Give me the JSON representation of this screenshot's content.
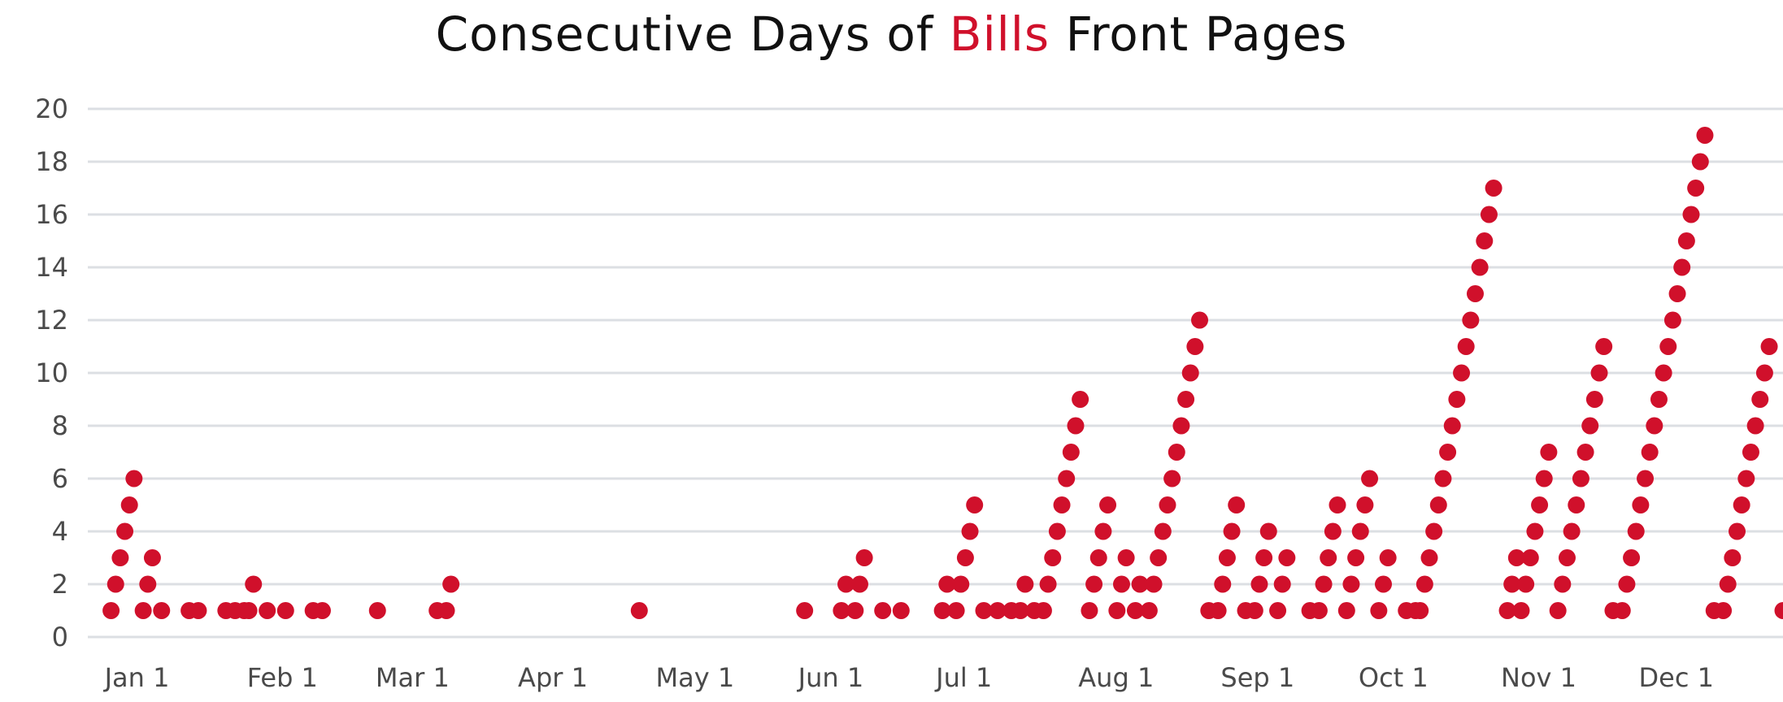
{
  "chart_data": {
    "type": "scatter",
    "title": "Consecutive Days of Bills Front Pages",
    "title_parts": {
      "before": "Consecutive Days of ",
      "accent": "Bills",
      "after": " Front Pages"
    },
    "accent_color": "#d0102b",
    "point_color": "#d0102b",
    "grid_color": "#dcdfe3",
    "xlabel": "",
    "ylabel": "",
    "ylim": [
      0,
      20
    ],
    "yticks": [
      0,
      2,
      4,
      6,
      8,
      10,
      12,
      14,
      16,
      18,
      20
    ],
    "xlim": [
      "Dec 28",
      "Dec 31"
    ],
    "xticks": [
      {
        "label": "Jan 1",
        "date": "Jan 1"
      },
      {
        "label": "Feb 1",
        "date": "Feb 1"
      },
      {
        "label": "Mar 1",
        "date": "Mar 1"
      },
      {
        "label": "Apr 1",
        "date": "Apr 1"
      },
      {
        "label": "May 1",
        "date": "May 1"
      },
      {
        "label": "Jun 1",
        "date": "Jun 1"
      },
      {
        "label": "Jul 1",
        "date": "Jul 1"
      },
      {
        "label": "Aug 1",
        "date": "Aug 1"
      },
      {
        "label": "Sep 1",
        "date": "Sep 1"
      },
      {
        "label": "Oct 1",
        "date": "Oct 1"
      },
      {
        "label": "Nov 1",
        "date": "Nov 1"
      },
      {
        "label": "Dec 1",
        "date": "Dec 1"
      }
    ],
    "grid": true,
    "legend": "none",
    "points": [
      [
        "Jan 1",
        1
      ],
      [
        "Jan 2",
        2
      ],
      [
        "Jan 3",
        3
      ],
      [
        "Jan 4",
        4
      ],
      [
        "Jan 5",
        5
      ],
      [
        "Jan 6",
        6
      ],
      [
        "Jan 8",
        1
      ],
      [
        "Jan 9",
        2
      ],
      [
        "Jan 10",
        3
      ],
      [
        "Jan 12",
        1
      ],
      [
        "Jan 18",
        1
      ],
      [
        "Jan 20",
        1
      ],
      [
        "Jan 26",
        1
      ],
      [
        "Jan 28",
        1
      ],
      [
        "Jan 30",
        1
      ],
      [
        "Jan 31",
        1
      ],
      [
        "Feb 1",
        2
      ],
      [
        "Feb 4",
        1
      ],
      [
        "Feb 8",
        1
      ],
      [
        "Feb 14",
        1
      ],
      [
        "Feb 16",
        1
      ],
      [
        "Feb 28",
        1
      ],
      [
        "Mar 13",
        1
      ],
      [
        "Mar 15",
        1
      ],
      [
        "Mar 16",
        2
      ],
      [
        "Apr 26",
        1
      ],
      [
        "Jun 1",
        1
      ],
      [
        "Jun 9",
        1
      ],
      [
        "Jun 10",
        2
      ],
      [
        "Jun 12",
        1
      ],
      [
        "Jun 13",
        2
      ],
      [
        "Jun 14",
        3
      ],
      [
        "Jun 18",
        1
      ],
      [
        "Jun 22",
        1
      ],
      [
        "Jul 1",
        1
      ],
      [
        "Jul 2",
        2
      ],
      [
        "Jul 4",
        1
      ],
      [
        "Jul 5",
        2
      ],
      [
        "Jul 6",
        3
      ],
      [
        "Jul 7",
        4
      ],
      [
        "Jul 8",
        5
      ],
      [
        "Jul 10",
        1
      ],
      [
        "Jul 13",
        1
      ],
      [
        "Jul 16",
        1
      ],
      [
        "Jul 18",
        1
      ],
      [
        "Jul 19",
        2
      ],
      [
        "Jul 21",
        1
      ],
      [
        "Jul 23",
        1
      ],
      [
        "Jul 24",
        2
      ],
      [
        "Jul 25",
        3
      ],
      [
        "Jul 26",
        4
      ],
      [
        "Jul 27",
        5
      ],
      [
        "Jul 28",
        6
      ],
      [
        "Jul 29",
        7
      ],
      [
        "Jul 30",
        8
      ],
      [
        "Jul 31",
        9
      ],
      [
        "Aug 2",
        1
      ],
      [
        "Aug 3",
        2
      ],
      [
        "Aug 4",
        3
      ],
      [
        "Aug 5",
        4
      ],
      [
        "Aug 6",
        5
      ],
      [
        "Aug 8",
        1
      ],
      [
        "Aug 9",
        2
      ],
      [
        "Aug 10",
        3
      ],
      [
        "Aug 12",
        1
      ],
      [
        "Aug 13",
        2
      ],
      [
        "Aug 15",
        1
      ],
      [
        "Aug 16",
        2
      ],
      [
        "Aug 17",
        3
      ],
      [
        "Aug 18",
        4
      ],
      [
        "Aug 19",
        5
      ],
      [
        "Aug 20",
        6
      ],
      [
        "Aug 21",
        7
      ],
      [
        "Aug 22",
        8
      ],
      [
        "Aug 23",
        9
      ],
      [
        "Aug 24",
        10
      ],
      [
        "Aug 25",
        11
      ],
      [
        "Aug 26",
        12
      ],
      [
        "Aug 28",
        1
      ],
      [
        "Aug 30",
        1
      ],
      [
        "Aug 31",
        2
      ],
      [
        "Sep 1",
        3
      ],
      [
        "Sep 2",
        4
      ],
      [
        "Sep 3",
        5
      ],
      [
        "Sep 5",
        1
      ],
      [
        "Sep 7",
        1
      ],
      [
        "Sep 8",
        2
      ],
      [
        "Sep 9",
        3
      ],
      [
        "Sep 10",
        4
      ],
      [
        "Sep 12",
        1
      ],
      [
        "Sep 13",
        2
      ],
      [
        "Sep 14",
        3
      ],
      [
        "Sep 19",
        1
      ],
      [
        "Sep 21",
        1
      ],
      [
        "Sep 22",
        2
      ],
      [
        "Sep 23",
        3
      ],
      [
        "Sep 24",
        4
      ],
      [
        "Sep 25",
        5
      ],
      [
        "Sep 27",
        1
      ],
      [
        "Sep 28",
        2
      ],
      [
        "Sep 29",
        3
      ],
      [
        "Sep 30",
        4
      ],
      [
        "Oct 1",
        5
      ],
      [
        "Oct 2",
        6
      ],
      [
        "Oct 4",
        1
      ],
      [
        "Oct 5",
        2
      ],
      [
        "Oct 6",
        3
      ],
      [
        "Oct 10",
        1
      ],
      [
        "Oct 12",
        1
      ],
      [
        "Oct 13",
        1
      ],
      [
        "Oct 14",
        2
      ],
      [
        "Oct 15",
        3
      ],
      [
        "Oct 16",
        4
      ],
      [
        "Oct 17",
        5
      ],
      [
        "Oct 18",
        6
      ],
      [
        "Oct 19",
        7
      ],
      [
        "Oct 20",
        8
      ],
      [
        "Oct 21",
        9
      ],
      [
        "Oct 22",
        10
      ],
      [
        "Oct 23",
        11
      ],
      [
        "Oct 24",
        12
      ],
      [
        "Oct 25",
        13
      ],
      [
        "Oct 26",
        14
      ],
      [
        "Oct 27",
        15
      ],
      [
        "Oct 28",
        16
      ],
      [
        "Oct 29",
        17
      ],
      [
        "Nov 1",
        1
      ],
      [
        "Nov 2",
        2
      ],
      [
        "Nov 3",
        3
      ],
      [
        "Nov 4",
        1
      ],
      [
        "Nov 5",
        2
      ],
      [
        "Nov 6",
        3
      ],
      [
        "Nov 7",
        4
      ],
      [
        "Nov 8",
        5
      ],
      [
        "Nov 9",
        6
      ],
      [
        "Nov 10",
        7
      ],
      [
        "Nov 12",
        1
      ],
      [
        "Nov 13",
        2
      ],
      [
        "Nov 14",
        3
      ],
      [
        "Nov 15",
        4
      ],
      [
        "Nov 16",
        5
      ],
      [
        "Nov 17",
        6
      ],
      [
        "Nov 18",
        7
      ],
      [
        "Nov 19",
        8
      ],
      [
        "Nov 20",
        9
      ],
      [
        "Nov 21",
        10
      ],
      [
        "Nov 22",
        11
      ],
      [
        "Nov 24",
        1
      ],
      [
        "Nov 26",
        1
      ],
      [
        "Nov 27",
        2
      ],
      [
        "Nov 28",
        3
      ],
      [
        "Nov 29",
        4
      ],
      [
        "Nov 30",
        5
      ],
      [
        "Dec 1",
        6
      ],
      [
        "Dec 2",
        7
      ],
      [
        "Dec 3",
        8
      ],
      [
        "Dec 4",
        9
      ],
      [
        "Dec 5",
        10
      ],
      [
        "Dec 6",
        11
      ],
      [
        "Dec 7",
        12
      ],
      [
        "Dec 8",
        13
      ],
      [
        "Dec 9",
        14
      ],
      [
        "Dec 10",
        15
      ],
      [
        "Dec 11",
        16
      ],
      [
        "Dec 12",
        17
      ],
      [
        "Dec 13",
        18
      ],
      [
        "Dec 14",
        19
      ],
      [
        "Dec 16",
        1
      ],
      [
        "Dec 18",
        1
      ],
      [
        "Dec 19",
        2
      ],
      [
        "Dec 20",
        3
      ],
      [
        "Dec 21",
        4
      ],
      [
        "Dec 22",
        5
      ],
      [
        "Dec 23",
        6
      ],
      [
        "Dec 24",
        7
      ],
      [
        "Dec 25",
        8
      ],
      [
        "Dec 26",
        9
      ],
      [
        "Dec 27",
        10
      ],
      [
        "Dec 28",
        11
      ],
      [
        "Dec 31",
        1
      ]
    ]
  }
}
